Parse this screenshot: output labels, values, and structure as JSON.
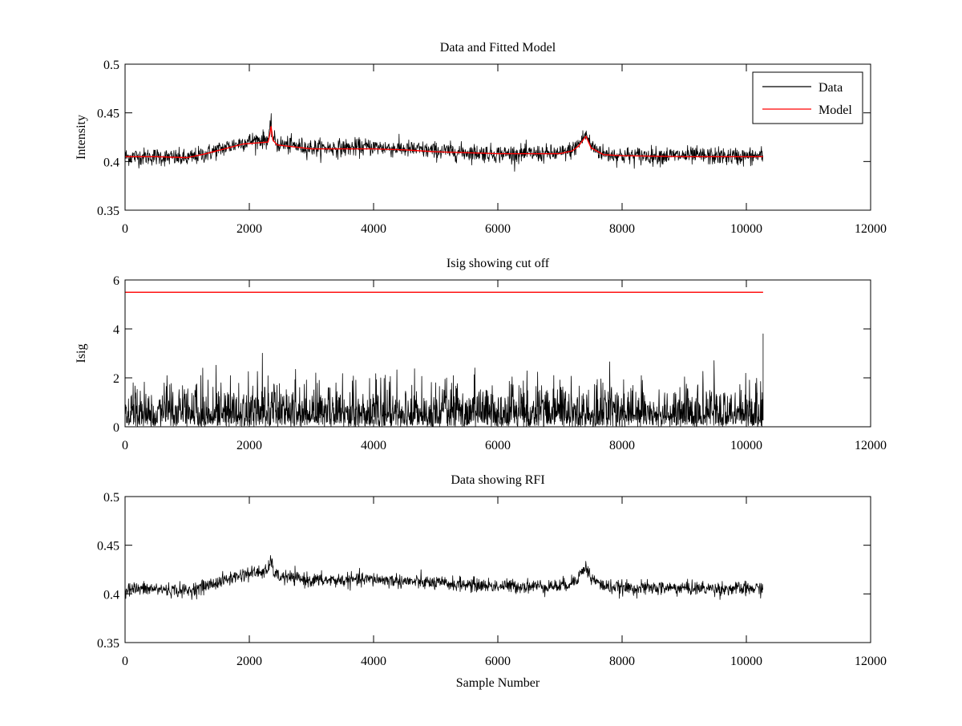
{
  "figure": {
    "background": "#ffffff"
  },
  "chart_data": [
    {
      "type": "line",
      "title": "Data and Fitted Model",
      "xlabel": "",
      "ylabel": "Intensity",
      "xlim": [
        0,
        12000
      ],
      "ylim": [
        0.35,
        0.5
      ],
      "xticks": [
        0,
        2000,
        4000,
        6000,
        8000,
        10000,
        12000
      ],
      "yticks": [
        0.35,
        0.4,
        0.45,
        0.5
      ],
      "xtick_labels": [
        "0",
        "2000",
        "4000",
        "6000",
        "8000",
        "10000",
        "12000"
      ],
      "ytick_labels": [
        "0.35",
        "0.4",
        "0.45",
        "0.5"
      ],
      "grid": false,
      "legend": {
        "placement": "top-right",
        "entries": [
          "Data",
          "Model"
        ]
      },
      "series": [
        {
          "name": "Data",
          "color": "#000000",
          "kind": "noisy",
          "noise_amplitude": 0.005,
          "x": [
            0,
            500,
            1000,
            1300,
            1600,
            1900,
            2100,
            2300,
            2330,
            2350,
            2380,
            2450,
            3000,
            3500,
            4000,
            4500,
            5000,
            6000,
            7000,
            7200,
            7300,
            7380,
            7420,
            7500,
            7700,
            8000,
            9000,
            10000,
            10270
          ],
          "y": [
            0.405,
            0.405,
            0.403,
            0.408,
            0.414,
            0.42,
            0.422,
            0.423,
            0.43,
            0.438,
            0.424,
            0.418,
            0.414,
            0.414,
            0.415,
            0.413,
            0.411,
            0.408,
            0.408,
            0.412,
            0.418,
            0.425,
            0.428,
            0.416,
            0.408,
            0.406,
            0.406,
            0.405,
            0.406
          ]
        },
        {
          "name": "Model",
          "color": "#ff0000",
          "kind": "smooth",
          "x": [
            0,
            500,
            1000,
            1300,
            1600,
            1900,
            2100,
            2300,
            2330,
            2350,
            2380,
            2450,
            3000,
            3500,
            4000,
            4500,
            5000,
            6000,
            7000,
            7200,
            7300,
            7380,
            7420,
            7500,
            7700,
            8000,
            9000,
            10000,
            10270
          ],
          "y": [
            0.405,
            0.405,
            0.404,
            0.408,
            0.413,
            0.418,
            0.419,
            0.42,
            0.428,
            0.436,
            0.422,
            0.417,
            0.413,
            0.413,
            0.413,
            0.412,
            0.41,
            0.408,
            0.408,
            0.411,
            0.416,
            0.423,
            0.426,
            0.414,
            0.407,
            0.406,
            0.405,
            0.405,
            0.405
          ]
        }
      ]
    },
    {
      "type": "line",
      "title": "Isig showing cut off",
      "xlabel": "",
      "ylabel": "Isig",
      "xlim": [
        0,
        12000
      ],
      "ylim": [
        0,
        6
      ],
      "xticks": [
        0,
        2000,
        4000,
        6000,
        8000,
        10000,
        12000
      ],
      "yticks": [
        0,
        2,
        4,
        6
      ],
      "xtick_labels": [
        "0",
        "2000",
        "4000",
        "6000",
        "8000",
        "10000",
        "12000"
      ],
      "ytick_labels": [
        "0",
        "2",
        "4",
        "6"
      ],
      "grid": false,
      "series": [
        {
          "color": "#000000",
          "kind": "halfnormal",
          "x": [
            0,
            10270
          ],
          "y": [
            0,
            0
          ],
          "scale": 0.8,
          "max": 3.8
        },
        {
          "color": "#ff0000",
          "kind": "smooth",
          "x": [
            0,
            10270
          ],
          "y": [
            5.5,
            5.5
          ]
        }
      ]
    },
    {
      "type": "line",
      "title": "Data showing RFI",
      "xlabel": "Sample Number",
      "ylabel": "",
      "xlim": [
        0,
        12000
      ],
      "ylim": [
        0.35,
        0.5
      ],
      "xticks": [
        0,
        2000,
        4000,
        6000,
        8000,
        10000,
        12000
      ],
      "yticks": [
        0.35,
        0.4,
        0.45,
        0.5
      ],
      "xtick_labels": [
        "0",
        "2000",
        "4000",
        "6000",
        "8000",
        "10000",
        "12000"
      ],
      "ytick_labels": [
        "0.35",
        "0.4",
        "0.45",
        "0.5"
      ],
      "grid": false,
      "series": [
        {
          "color": "#000000",
          "kind": "noisy",
          "noise_amplitude": 0.004,
          "x": [
            0,
            500,
            1000,
            1300,
            1600,
            1900,
            2100,
            2300,
            2330,
            2350,
            2380,
            2450,
            3000,
            3500,
            4000,
            4500,
            5000,
            6000,
            7000,
            7200,
            7300,
            7380,
            7420,
            7500,
            7700,
            8000,
            9000,
            10000,
            10270
          ],
          "y": [
            0.405,
            0.405,
            0.403,
            0.408,
            0.414,
            0.42,
            0.422,
            0.423,
            0.43,
            0.438,
            0.424,
            0.418,
            0.414,
            0.414,
            0.415,
            0.413,
            0.411,
            0.408,
            0.408,
            0.412,
            0.418,
            0.425,
            0.428,
            0.416,
            0.408,
            0.406,
            0.406,
            0.405,
            0.406
          ]
        }
      ]
    }
  ]
}
